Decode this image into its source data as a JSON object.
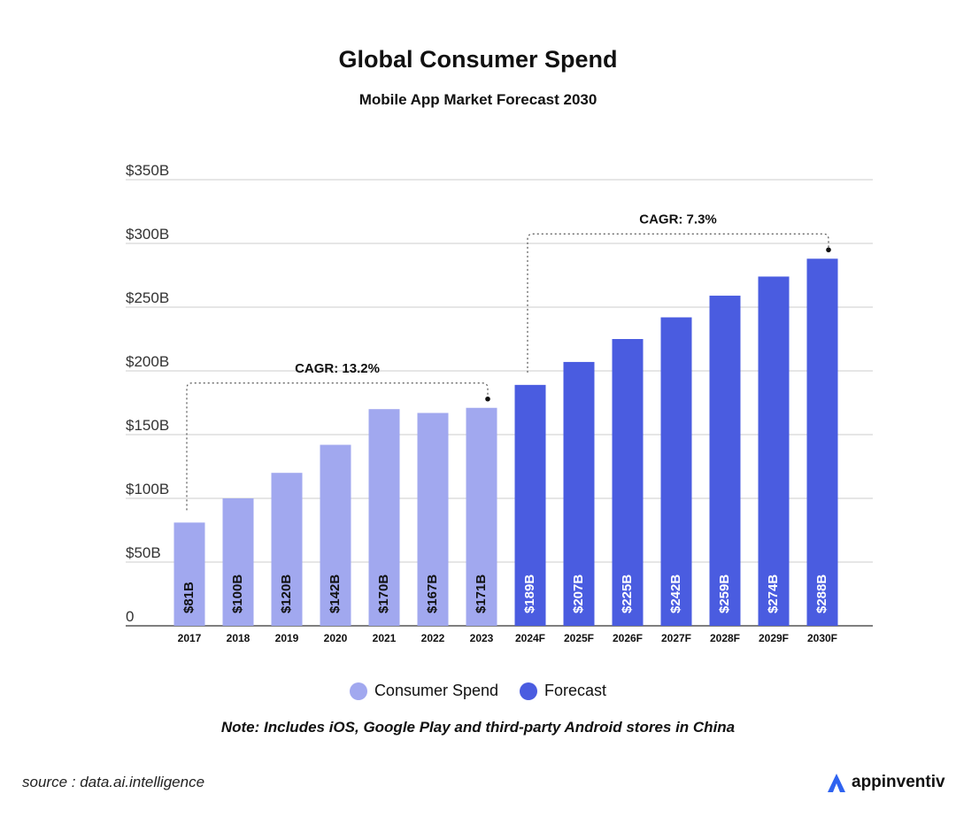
{
  "header": {
    "title": "Global Consumer Spend",
    "subtitle": "Mobile App Market Forecast 2030"
  },
  "colors": {
    "actual": "#A1A8EF",
    "forecast": "#4A5CE0",
    "grid": "#CCCCCC",
    "axis": "#333333"
  },
  "chart_data": {
    "type": "bar",
    "title": "Global Consumer Spend",
    "subtitle": "Mobile App Market Forecast 2030",
    "categories": [
      "2017",
      "2018",
      "2019",
      "2020",
      "2021",
      "2022",
      "2023",
      "2024F",
      "2025F",
      "2026F",
      "2027F",
      "2028F",
      "2029F",
      "2030F"
    ],
    "series": [
      {
        "name": "Consumer Spend",
        "color": "#A1A8EF",
        "values": [
          81,
          100,
          120,
          142,
          170,
          167,
          171,
          null,
          null,
          null,
          null,
          null,
          null,
          null
        ],
        "labels": [
          "$81B",
          "$100B",
          "$120B",
          "$142B",
          "$170B",
          "$167B",
          "$171B",
          null,
          null,
          null,
          null,
          null,
          null,
          null
        ]
      },
      {
        "name": "Forecast",
        "color": "#4A5CE0",
        "values": [
          null,
          null,
          null,
          null,
          null,
          null,
          null,
          189,
          207,
          225,
          242,
          259,
          274,
          288
        ],
        "labels": [
          null,
          null,
          null,
          null,
          null,
          null,
          null,
          "$189B",
          "$207B",
          "$225B",
          "$242B",
          "$259B",
          "$274B",
          "$288B"
        ]
      }
    ],
    "ylim": [
      0,
      350
    ],
    "yticks": [
      0,
      50,
      100,
      150,
      200,
      250,
      300,
      350
    ],
    "ytick_labels": [
      "0",
      "$50B",
      "$100B",
      "$150B",
      "$200B",
      "$250B",
      "$300B",
      "$350B"
    ],
    "xlabel": "",
    "ylabel": "",
    "grid": true,
    "legend": "bottom-center",
    "annotations": [
      {
        "text": "CAGR: 13.2%",
        "from_category": "2017",
        "to_category": "2023"
      },
      {
        "text": "CAGR: 7.3%",
        "from_category": "2024F",
        "to_category": "2030F"
      }
    ]
  },
  "legend": {
    "items": [
      {
        "label": "Consumer Spend",
        "color": "#A1A8EF"
      },
      {
        "label": "Forecast",
        "color": "#4A5CE0"
      }
    ]
  },
  "note": "Note: Includes iOS, Google Play and third-party Android stores in China",
  "source": "source : data.ai.intelligence",
  "brand": {
    "name": "appinventiv",
    "icon": "appinventiv-logo-icon"
  }
}
